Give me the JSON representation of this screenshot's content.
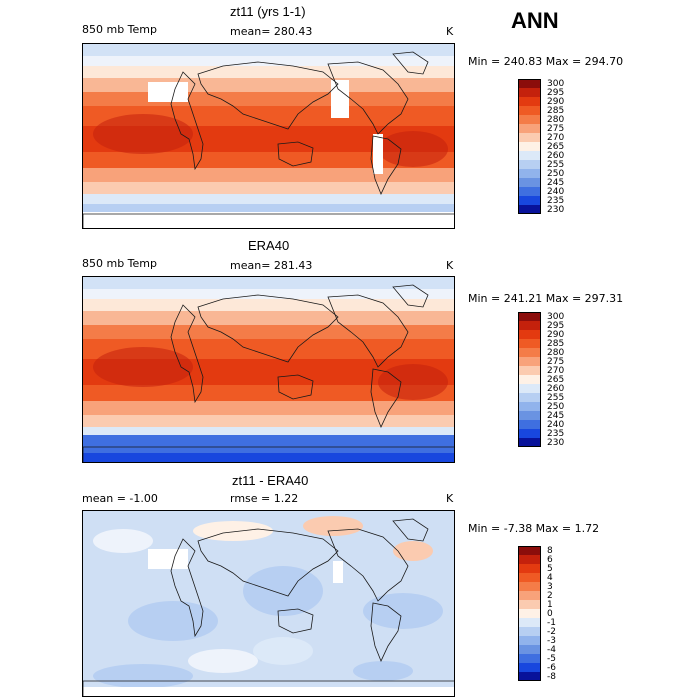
{
  "season": "ANN",
  "panels": [
    {
      "id": "model",
      "title": "zt11 (yrs 1-1)",
      "left_label": "850 mb Temp",
      "stat_label": "mean= 280.43",
      "stat2_label": "",
      "units": "K",
      "minmax": "Min = 240.83 Max = 294.70",
      "levels": [
        "300",
        "295",
        "290",
        "285",
        "280",
        "275",
        "270",
        "265",
        "260",
        "255",
        "250",
        "245",
        "240",
        "235",
        "230"
      ],
      "colors": [
        "#8b0d0b",
        "#c4210c",
        "#e33a10",
        "#ef5a24",
        "#f47c48",
        "#f8a27a",
        "#fbcbb0",
        "#fef1e6",
        "#dce9f8",
        "#b7cff2",
        "#91b3ec",
        "#6a93e2",
        "#3f6fe0",
        "#1847de",
        "#08129a"
      ]
    },
    {
      "id": "obs",
      "title": "ERA40",
      "left_label": "850 mb Temp",
      "stat_label": "mean= 281.43",
      "stat2_label": "",
      "units": "K",
      "minmax": "Min = 241.21 Max = 297.31",
      "levels": [
        "300",
        "295",
        "290",
        "285",
        "280",
        "275",
        "270",
        "265",
        "260",
        "255",
        "250",
        "245",
        "240",
        "235",
        "230"
      ],
      "colors": [
        "#8b0d0b",
        "#c4210c",
        "#e33a10",
        "#ef5a24",
        "#f47c48",
        "#f8a27a",
        "#fbcbb0",
        "#fef1e6",
        "#dce9f8",
        "#b7cff2",
        "#91b3ec",
        "#6a93e2",
        "#3f6fe0",
        "#1847de",
        "#08129a"
      ]
    },
    {
      "id": "diff",
      "title": "zt11 - ERA40",
      "left_label": "mean =   -1.00",
      "stat_label": "rmse =   1.22",
      "stat2_label": "",
      "units": "K",
      "minmax": "Min =  -7.38 Max =   1.72",
      "levels": [
        "8",
        "6",
        "5",
        "4",
        "3",
        "2",
        "1",
        "0",
        "-1",
        "-2",
        "-3",
        "-4",
        "-5",
        "-6",
        "-8"
      ],
      "colors": [
        "#8b0d0b",
        "#c4210c",
        "#e33a10",
        "#ef5a24",
        "#f47c48",
        "#f8a27a",
        "#fbcbb0",
        "#fef1e6",
        "#dce9f8",
        "#b7cff2",
        "#91b3ec",
        "#6a93e2",
        "#3f6fe0",
        "#1847de",
        "#08129a"
      ]
    }
  ],
  "chart_data": [
    {
      "type": "heatmap",
      "title": "zt11 (yrs 1-1)",
      "variable": "850 mb Temp",
      "units": "K",
      "mean": 280.43,
      "min": 240.83,
      "max": 294.7,
      "contour_levels": [
        230,
        235,
        240,
        245,
        250,
        255,
        260,
        265,
        270,
        275,
        280,
        285,
        290,
        295,
        300
      ]
    },
    {
      "type": "heatmap",
      "title": "ERA40",
      "variable": "850 mb Temp",
      "units": "K",
      "mean": 281.43,
      "min": 241.21,
      "max": 297.31,
      "contour_levels": [
        230,
        235,
        240,
        245,
        250,
        255,
        260,
        265,
        270,
        275,
        280,
        285,
        290,
        295,
        300
      ]
    },
    {
      "type": "heatmap",
      "title": "zt11 - ERA40",
      "units": "K",
      "mean": -1.0,
      "rmse": 1.22,
      "min": -7.38,
      "max": 1.72,
      "contour_levels": [
        -8,
        -6,
        -5,
        -4,
        -3,
        -2,
        -1,
        0,
        1,
        2,
        3,
        4,
        5,
        6,
        8
      ]
    }
  ]
}
